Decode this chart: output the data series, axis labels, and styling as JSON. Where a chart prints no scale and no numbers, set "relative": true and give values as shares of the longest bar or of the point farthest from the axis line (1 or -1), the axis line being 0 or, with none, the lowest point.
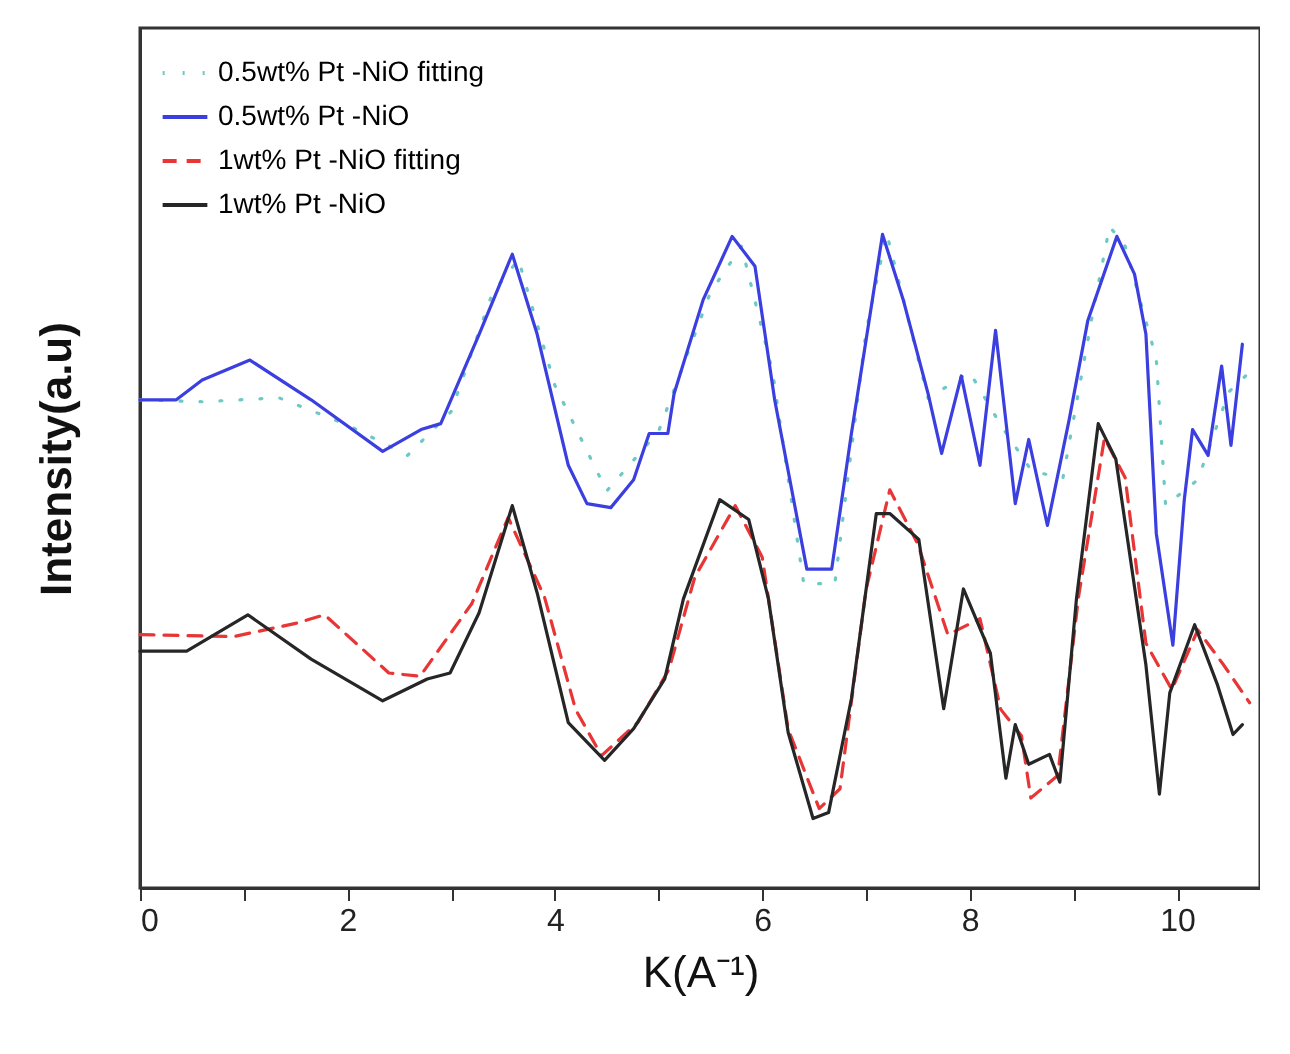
{
  "chart_data": {
    "type": "line",
    "xlabel": "K(A⁻¹)",
    "ylabel": "Intensity(a.u)",
    "relative": true,
    "xlim": [
      0,
      10.8
    ],
    "xticks": [
      0,
      {
        "value": 1,
        "label": null
      },
      2,
      {
        "value": 3,
        "label": null
      },
      4,
      {
        "value": 5,
        "label": null
      },
      6,
      {
        "value": 7,
        "label": null
      },
      8,
      {
        "value": 9,
        "label": null
      },
      10
    ],
    "grid": false,
    "legend": "top left",
    "marker": "none",
    "series": [
      {
        "name": "0.5wt% Pt -NiO fitting",
        "color": "#6cc9c4",
        "line_style": "dotted",
        "x": [
          0,
          0.6,
          1.34,
          2.0,
          2.58,
          3.0,
          3.4,
          3.65,
          4.0,
          4.5,
          5.0,
          5.5,
          5.8,
          6.1,
          6.4,
          6.7,
          7.0,
          7.2,
          7.6,
          8.0,
          8.3,
          8.6,
          8.9,
          9.2,
          9.35,
          9.5,
          9.8,
          9.89,
          10.2,
          10.5,
          10.7
        ],
        "values": [
          0.738,
          0.735,
          0.741,
          0.7,
          0.654,
          0.72,
          0.9,
          0.95,
          0.76,
          0.6,
          0.69,
          0.9,
          0.97,
          0.78,
          0.46,
          0.46,
          0.84,
          0.99,
          0.74,
          0.78,
          0.7,
          0.63,
          0.62,
          0.88,
          1.0,
          0.97,
          0.8,
          0.578,
          0.617,
          0.75,
          0.78
        ]
      },
      {
        "name": "0.5wt% Pt -NiO",
        "color": "#3b3fe0",
        "line_style": "solid",
        "x": [
          0,
          0.35,
          0.6,
          1.06,
          1.65,
          2.34,
          2.71,
          2.9,
          3.27,
          3.59,
          3.83,
          4.13,
          4.31,
          4.54,
          4.76,
          4.91,
          5.09,
          5.15,
          5.43,
          5.71,
          5.93,
          6.12,
          6.43,
          6.67,
          6.86,
          7.04,
          7.16,
          7.36,
          7.6,
          7.73,
          7.92,
          8.1,
          8.25,
          8.44,
          8.57,
          8.75,
          8.96,
          9.14,
          9.42,
          9.59,
          9.7,
          9.8,
          9.96,
          10.07,
          10.15,
          10.3,
          10.43,
          10.52,
          10.63
        ],
        "values": [
          0.738,
          0.738,
          0.768,
          0.798,
          0.738,
          0.66,
          0.693,
          0.702,
          0.837,
          0.958,
          0.837,
          0.639,
          0.581,
          0.575,
          0.617,
          0.687,
          0.687,
          0.747,
          0.889,
          0.985,
          0.94,
          0.738,
          0.482,
          0.482,
          0.687,
          0.867,
          0.988,
          0.889,
          0.747,
          0.657,
          0.774,
          0.639,
          0.843,
          0.581,
          0.678,
          0.548,
          0.708,
          0.858,
          0.985,
          0.928,
          0.837,
          0.536,
          0.367,
          0.587,
          0.693,
          0.654,
          0.789,
          0.669,
          0.822
        ]
      },
      {
        "name": "1wt% Pt -NiO fitting",
        "color": "#e83535",
        "line_style": "dashed",
        "x": [
          0,
          0.9,
          1.5,
          1.78,
          2.4,
          2.7,
          3.2,
          3.55,
          3.9,
          4.2,
          4.45,
          4.8,
          5.1,
          5.35,
          5.74,
          6.0,
          6.25,
          6.55,
          6.75,
          7.0,
          7.23,
          7.5,
          7.79,
          8.1,
          8.3,
          8.5,
          8.59,
          8.85,
          9.05,
          9.3,
          9.5,
          9.7,
          9.95,
          10.2,
          10.45,
          10.7
        ],
        "values": [
          0.383,
          0.38,
          0.4,
          0.413,
          0.325,
          0.32,
          0.43,
          0.56,
          0.44,
          0.27,
          0.2,
          0.25,
          0.33,
          0.47,
          0.578,
          0.5,
          0.24,
          0.12,
          0.15,
          0.45,
          0.602,
          0.52,
          0.383,
          0.407,
          0.27,
          0.23,
          0.136,
          0.17,
          0.44,
          0.68,
          0.62,
          0.37,
          0.3,
          0.39,
          0.337,
          0.28
        ]
      },
      {
        "name": "1wt% Pt -NiO",
        "color": "#262626",
        "line_style": "solid",
        "x": [
          0,
          0.45,
          1.04,
          1.65,
          2.34,
          2.77,
          2.99,
          3.27,
          3.59,
          3.83,
          4.13,
          4.48,
          4.76,
          5.06,
          5.24,
          5.59,
          5.87,
          6.06,
          6.25,
          6.49,
          6.64,
          6.86,
          7.1,
          7.23,
          7.51,
          7.75,
          7.94,
          8.2,
          8.35,
          8.44,
          8.57,
          8.77,
          8.87,
          9.03,
          9.24,
          9.41,
          9.7,
          9.83,
          9.93,
          10.17,
          10.39,
          10.54,
          10.63
        ],
        "values": [
          0.358,
          0.358,
          0.413,
          0.346,
          0.283,
          0.316,
          0.325,
          0.416,
          0.578,
          0.446,
          0.25,
          0.193,
          0.241,
          0.316,
          0.437,
          0.587,
          0.557,
          0.437,
          0.235,
          0.105,
          0.114,
          0.286,
          0.566,
          0.566,
          0.527,
          0.271,
          0.452,
          0.355,
          0.166,
          0.247,
          0.187,
          0.202,
          0.16,
          0.437,
          0.702,
          0.648,
          0.337,
          0.142,
          0.295,
          0.398,
          0.307,
          0.232,
          0.247
        ]
      }
    ]
  }
}
